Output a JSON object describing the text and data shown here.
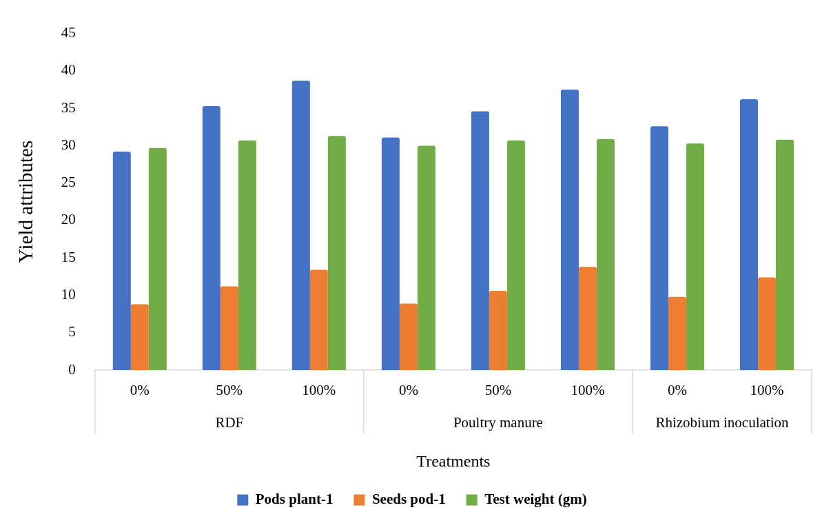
{
  "chart_data": {
    "type": "bar",
    "xlabel": "Treatments",
    "ylabel": "Yield attributes",
    "categories": [
      "0%",
      "50%",
      "100%",
      "0%",
      "50%",
      "100%",
      "0%",
      "100%"
    ],
    "annotations": [
      "RDF",
      "Poultry manure",
      "Rhizobium inoculation"
    ],
    "series": [
      {
        "name": "Pods plant-1",
        "color": "#4472c4",
        "values": [
          29.2,
          35.3,
          38.7,
          31.1,
          34.6,
          37.5,
          32.6,
          36.2
        ]
      },
      {
        "name": "Seeds pod-1",
        "color": "#ed7d31",
        "values": [
          8.8,
          11.2,
          13.4,
          8.9,
          10.6,
          13.8,
          9.8,
          12.4
        ]
      },
      {
        "name": "Test weight (gm)",
        "color": "#70ad47",
        "values": [
          29.7,
          30.7,
          31.3,
          30.0,
          30.7,
          30.9,
          30.3,
          30.8
        ]
      }
    ],
    "ylim": [
      0,
      45
    ],
    "yticks": [
      0,
      5,
      10,
      15,
      20,
      25,
      30,
      35,
      40,
      45
    ],
    "grid": false,
    "legend": "bottom"
  }
}
